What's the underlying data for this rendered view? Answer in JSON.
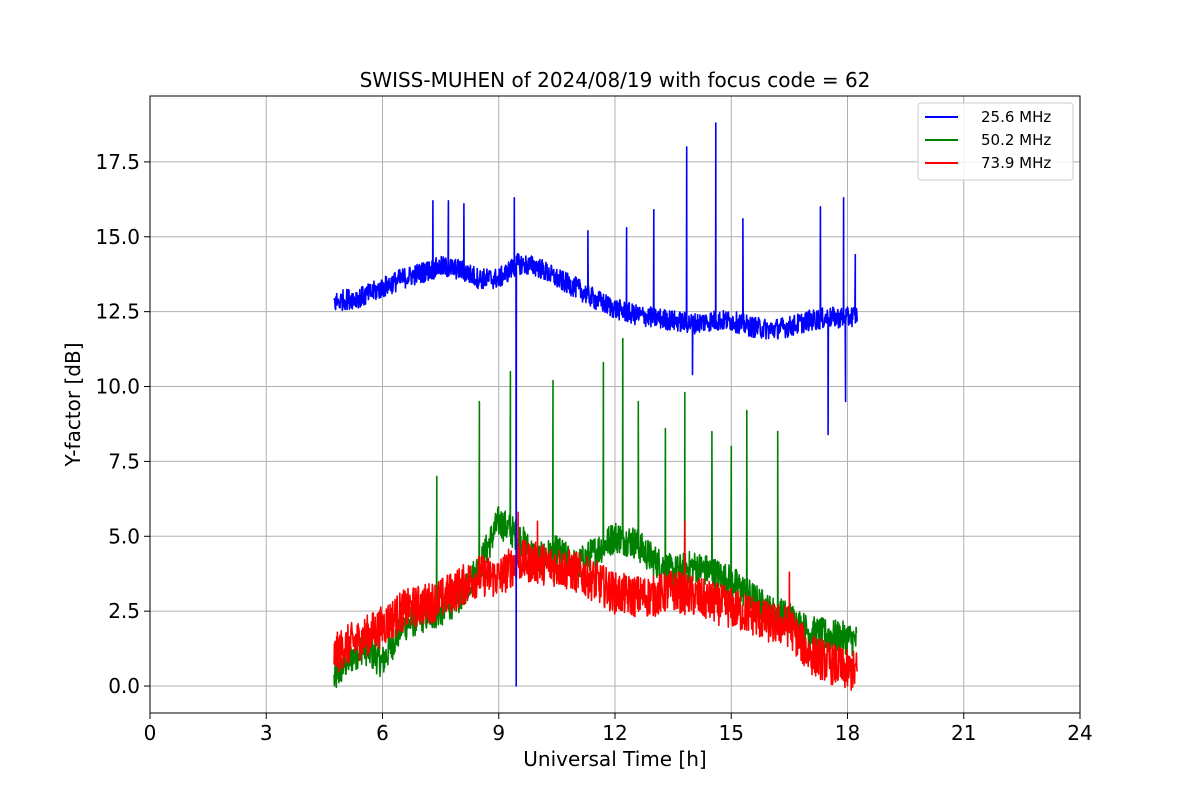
{
  "chart_data": {
    "type": "line",
    "title": "SWISS-MUHEN of 2024/08/19 with focus code = 62",
    "xlabel": "Universal Time [h]",
    "ylabel": "Y-factor [dB]",
    "xlim": [
      0,
      24
    ],
    "ylim": [
      -0.9,
      19.7
    ],
    "xticks": [
      0,
      3,
      6,
      9,
      12,
      15,
      18,
      21,
      24
    ],
    "xtick_labels": [
      "0",
      "3",
      "6",
      "9",
      "12",
      "15",
      "18",
      "21",
      "24"
    ],
    "yticks": [
      0.0,
      2.5,
      5.0,
      7.5,
      10.0,
      12.5,
      15.0,
      17.5
    ],
    "ytick_labels": [
      "0.0",
      "2.5",
      "5.0",
      "7.5",
      "10.0",
      "12.5",
      "15.0",
      "17.5"
    ],
    "grid": true,
    "legend_position": "top-right",
    "series": [
      {
        "name": "25.6 MHz",
        "color": "#0000ff",
        "x": [
          4.75,
          5.0,
          5.5,
          6.0,
          6.5,
          7.0,
          7.5,
          8.0,
          8.5,
          9.0,
          9.5,
          10.0,
          10.5,
          11.0,
          11.5,
          12.0,
          12.5,
          13.0,
          13.5,
          14.0,
          14.5,
          15.0,
          15.5,
          16.0,
          16.5,
          17.0,
          17.5,
          18.0,
          18.25
        ],
        "y": [
          12.8,
          12.9,
          13.0,
          13.3,
          13.6,
          13.8,
          14.0,
          13.9,
          13.6,
          13.6,
          14.1,
          14.0,
          13.6,
          13.3,
          12.9,
          12.6,
          12.4,
          12.3,
          12.2,
          12.1,
          12.2,
          12.2,
          12.0,
          11.9,
          12.0,
          12.2,
          12.3,
          12.3,
          12.4
        ],
        "spikes": [
          {
            "x": 7.3,
            "y": 16.2
          },
          {
            "x": 7.7,
            "y": 16.2
          },
          {
            "x": 8.1,
            "y": 16.1
          },
          {
            "x": 9.4,
            "y": 16.3
          },
          {
            "x": 9.45,
            "y": 0.0
          },
          {
            "x": 11.3,
            "y": 15.2
          },
          {
            "x": 12.3,
            "y": 15.3
          },
          {
            "x": 13.0,
            "y": 15.9
          },
          {
            "x": 13.85,
            "y": 18.0
          },
          {
            "x": 14.0,
            "y": 10.4
          },
          {
            "x": 14.6,
            "y": 18.8
          },
          {
            "x": 15.3,
            "y": 15.6
          },
          {
            "x": 17.3,
            "y": 16.0
          },
          {
            "x": 17.5,
            "y": 8.4
          },
          {
            "x": 17.9,
            "y": 16.3
          },
          {
            "x": 17.95,
            "y": 9.5
          },
          {
            "x": 18.2,
            "y": 14.4
          }
        ]
      },
      {
        "name": "50.2 MHz",
        "color": "#008000",
        "x": [
          4.75,
          5.0,
          5.5,
          6.0,
          6.5,
          7.0,
          7.5,
          8.0,
          8.5,
          9.0,
          9.5,
          10.0,
          10.5,
          11.0,
          11.5,
          12.0,
          12.5,
          13.0,
          13.5,
          14.0,
          14.5,
          15.0,
          15.5,
          16.0,
          16.5,
          17.0,
          17.5,
          18.0,
          18.25
        ],
        "y": [
          0.2,
          0.7,
          1.3,
          0.8,
          2.0,
          2.3,
          2.5,
          3.0,
          4.0,
          5.5,
          5.0,
          4.2,
          4.5,
          4.0,
          4.5,
          5.0,
          4.8,
          4.2,
          3.8,
          4.0,
          3.8,
          3.5,
          3.0,
          2.5,
          2.3,
          1.8,
          1.7,
          1.6,
          1.5
        ],
        "spikes": [
          {
            "x": 7.4,
            "y": 7.0
          },
          {
            "x": 8.5,
            "y": 9.5
          },
          {
            "x": 9.3,
            "y": 10.5
          },
          {
            "x": 10.4,
            "y": 10.2
          },
          {
            "x": 11.7,
            "y": 10.8
          },
          {
            "x": 12.2,
            "y": 11.6
          },
          {
            "x": 12.6,
            "y": 9.5
          },
          {
            "x": 13.3,
            "y": 8.6
          },
          {
            "x": 13.8,
            "y": 9.8
          },
          {
            "x": 14.5,
            "y": 8.5
          },
          {
            "x": 15.0,
            "y": 8.0
          },
          {
            "x": 15.4,
            "y": 9.2
          },
          {
            "x": 16.2,
            "y": 8.5
          }
        ]
      },
      {
        "name": "73.9 MHz",
        "color": "#ff0000",
        "x": [
          4.75,
          5.0,
          5.5,
          6.0,
          6.5,
          7.0,
          7.5,
          8.0,
          8.5,
          9.0,
          9.5,
          10.0,
          10.5,
          11.0,
          11.5,
          12.0,
          12.5,
          13.0,
          13.5,
          14.0,
          14.5,
          15.0,
          15.5,
          16.0,
          16.5,
          17.0,
          17.5,
          18.0,
          18.25
        ],
        "y": [
          1.0,
          1.3,
          1.6,
          2.0,
          2.5,
          2.7,
          2.9,
          3.3,
          3.7,
          3.6,
          4.2,
          4.1,
          4.0,
          3.8,
          3.5,
          3.1,
          3.0,
          3.0,
          3.2,
          3.0,
          2.8,
          2.6,
          2.4,
          2.1,
          2.0,
          1.1,
          0.8,
          0.5,
          0.5
        ],
        "spikes": [
          {
            "x": 9.5,
            "y": 5.8
          },
          {
            "x": 10.0,
            "y": 5.5
          },
          {
            "x": 13.8,
            "y": 5.5
          },
          {
            "x": 16.5,
            "y": 3.8
          }
        ]
      }
    ]
  }
}
